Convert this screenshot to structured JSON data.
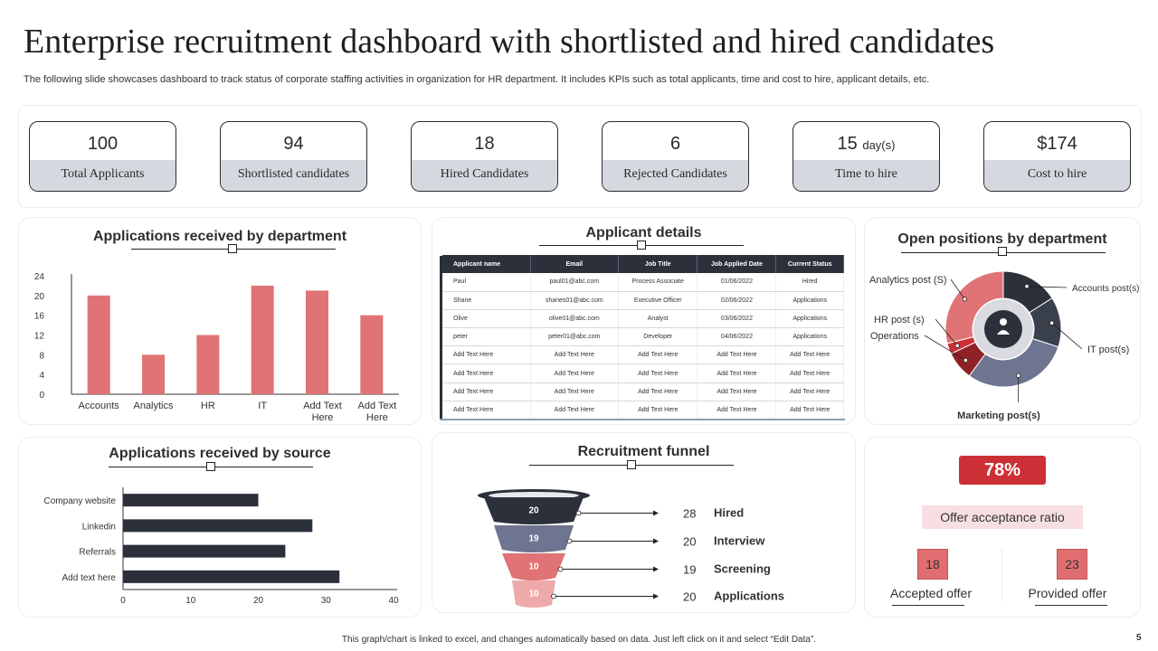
{
  "title": "Enterprise recruitment dashboard with shortlisted and hired candidates",
  "subtitle": "The following slide showcases dashboard to track status of corporate staffing activities in organization for HR department. It includes KPIs such as total applicants, time and cost to hire, applicant details, etc.",
  "kpis": [
    {
      "value": "100",
      "unit": "",
      "label": "Total Applicants"
    },
    {
      "value": "94",
      "unit": "",
      "label": "Shortlisted candidates"
    },
    {
      "value": "18",
      "unit": "",
      "label": "Hired Candidates"
    },
    {
      "value": "6",
      "unit": "",
      "label": "Rejected Candidates"
    },
    {
      "value": "15",
      "unit": "day(s)",
      "label": "Time to hire"
    },
    {
      "value": "$174",
      "unit": "",
      "label": "Cost to hire"
    }
  ],
  "panels": {
    "dept_title": "Applications received by department",
    "details_title": "Applicant details",
    "open_title": "Open positions by department",
    "source_title": "Applications received by source",
    "funnel_title": "Recruitment funnel"
  },
  "applicant_table": {
    "headers": [
      "Applicant name",
      "Email",
      "Job Title",
      "Job Applied Date",
      "Current Status"
    ],
    "rows": [
      [
        "Paul",
        "paul01@abc.com",
        "Process Associate",
        "01/06/2022",
        "Hired"
      ],
      [
        "Shane",
        "shanes01@abc.com",
        "Executive Officer",
        "02/06/2022",
        "Applications"
      ],
      [
        "Olive",
        "olive01@abc.com",
        "Analyst",
        "03/06/2022",
        "Applications"
      ],
      [
        "peter",
        "peter01@abc.com",
        "Developer",
        "04/06/2022",
        "Applications"
      ],
      [
        "Add Text Here",
        "Add Text Here",
        "Add Text Here",
        "Add Text Here",
        "Add Text Here"
      ],
      [
        "Add Text Here",
        "Add Text Here",
        "Add Text Here",
        "Add Text Here",
        "Add Text Here"
      ],
      [
        "Add Text Here",
        "Add Text Here",
        "Add Text Here",
        "Add Text Here",
        "Add Text Here"
      ],
      [
        "Add Text Here",
        "Add Text Here",
        "Add Text Here",
        "Add Text Here",
        "Add Text Here"
      ]
    ]
  },
  "offer": {
    "percent": "78%",
    "label": "Offer acceptance ratio",
    "accepted_value": "18",
    "accepted_label": "Accepted offer",
    "provided_value": "23",
    "provided_label": "Provided offer"
  },
  "footer": "This graph/chart is linked to excel, and changes automatically based on data. Just left click on it and select “Edit Data”.",
  "page_number": "5",
  "colors": {
    "red": "#e07375",
    "dark": "#2b303b",
    "slate": "#6d7590",
    "badge": "#cc2f35"
  },
  "chart_data": [
    {
      "type": "bar",
      "title": "Applications received by department",
      "categories": [
        "Accounts",
        "Analytics",
        "HR",
        "IT",
        "Add Text Here",
        "Add Text Here"
      ],
      "values": [
        20,
        8,
        12,
        22,
        21,
        16
      ],
      "ylim": [
        0,
        24
      ],
      "yticks": [
        0,
        4,
        8,
        12,
        16,
        20,
        24
      ],
      "color": "#e07375"
    },
    {
      "type": "bar",
      "orientation": "horizontal",
      "title": "Applications received by source",
      "categories": [
        "Company website",
        "Linkedin",
        "Referrals",
        "Add text here"
      ],
      "values": [
        20,
        28,
        24,
        32
      ],
      "xlim": [
        0,
        40
      ],
      "xticks": [
        0,
        10,
        20,
        30,
        40
      ],
      "color": "#2b303b"
    },
    {
      "type": "pie",
      "title": "Open positions by department",
      "slices": [
        {
          "label": "Accounts post(s)",
          "value": 16,
          "color": "#2b303b"
        },
        {
          "label": "IT post(s)",
          "value": 14,
          "color": "#3a3f4c"
        },
        {
          "label": "Marketing post(s)",
          "value": 30,
          "color": "#6d7590"
        },
        {
          "label": "Operations",
          "value": 8,
          "color": "#8e2226"
        },
        {
          "label": "HR post (s)",
          "value": 3,
          "color": "#cc2f35"
        },
        {
          "label": "Analytics post (S)",
          "value": 29,
          "color": "#e07375"
        }
      ],
      "center_icon": "people-gear-icon"
    },
    {
      "type": "funnel",
      "title": "Recruitment funnel",
      "stages": [
        {
          "label": "Hired",
          "value": 28,
          "inner": 20,
          "color": "#2b303b"
        },
        {
          "label": "Interview",
          "value": 20,
          "inner": 19,
          "color": "#6d7590"
        },
        {
          "label": "Screening",
          "value": 19,
          "inner": 10,
          "color": "#e07375"
        },
        {
          "label": "Applications",
          "value": 20,
          "inner": 10,
          "color": "#eea9ab"
        }
      ]
    }
  ]
}
